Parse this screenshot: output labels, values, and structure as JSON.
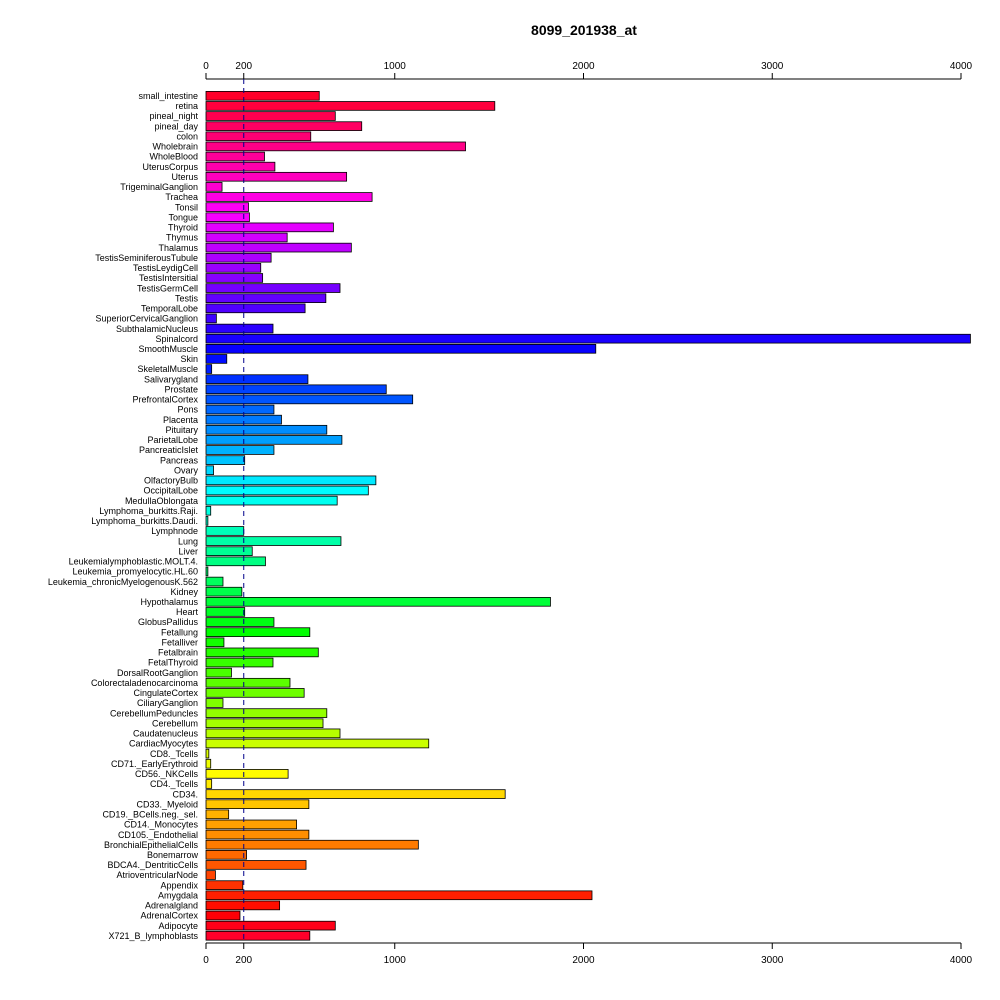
{
  "chart_data": {
    "type": "bar",
    "orientation": "horizontal",
    "title": "8099_201938_at",
    "xlabel": "",
    "ylabel": "",
    "xlim": [
      0,
      4000
    ],
    "x_ticks": [
      0,
      200,
      1000,
      2000,
      3000,
      4000
    ],
    "reference_line": 200,
    "axes": [
      "top",
      "bottom"
    ],
    "grid": false,
    "legend": "none",
    "bar_colors": "rainbow gradient from red (top) through magenta, blue, cyan, green, yellow, orange back to red (bottom)",
    "categories": [
      "small_intestine",
      "retina",
      "pineal_night",
      "pineal_day",
      "colon",
      "Wholebrain",
      "WholeBlood",
      "UterusCorpus",
      "Uterus",
      "TrigeminalGanglion",
      "Trachea",
      "Tonsil",
      "Tongue",
      "Thyroid",
      "Thymus",
      "Thalamus",
      "TestisSeminiferousTubule",
      "TestisLeydigCell",
      "TestisIntersitial",
      "TestisGermCell",
      "Testis",
      "TemporalLobe",
      "SuperiorCervicalGanglion",
      "SubthalamicNucleus",
      "Spinalcord",
      "SmoothMuscle",
      "Skin",
      "SkeletalMuscle",
      "Salivarygland",
      "Prostate",
      "PrefrontalCortex",
      "Pons",
      "Placenta",
      "Pituitary",
      "ParietalLobe",
      "PancreaticIslet",
      "Pancreas",
      "Ovary",
      "OlfactoryBulb",
      "OccipitalLobe",
      "MedullaOblongata",
      "Lymphoma_burkitts.Raji.",
      "Lymphoma_burkitts.Daudi.",
      "Lymphnode",
      "Lung",
      "Liver",
      "Leukemialymphoblastic.MOLT.4.",
      "Leukemia_promyelocytic.HL.60",
      "Leukemia_chronicMyelogenousK.562",
      "Kidney",
      "Hypothalamus",
      "Heart",
      "GlobusPallidus",
      "Fetallung",
      "Fetalliver",
      "Fetalbrain",
      "FetalThyroid",
      "DorsalRootGanglion",
      "Colorectaladenocarcinoma",
      "CingulateCortex",
      "CiliaryGanglion",
      "CerebellumPeduncles",
      "Cerebellum",
      "Caudatenucleus",
      "CardiacMyocytes",
      "CD8._Tcells",
      "CD71._EarlyErythroid",
      "CD56._NKCells",
      "CD4._Tcells",
      "CD34.",
      "CD33._Myeloid",
      "CD19._BCells.neg._sel.",
      "CD14._Monocytes",
      "CD105._Endothelial",
      "BronchialEpithelialCells",
      "Bonemarrow",
      "BDCA4._DentriticCells",
      "AtrioventricularNode",
      "Appendix",
      "Amygdala",
      "Adrenalgland",
      "AdrenalCortex",
      "Adipocyte",
      "X721_B_lymphoblasts"
    ],
    "values": [
      600,
      1530,
      685,
      825,
      555,
      1375,
      310,
      365,
      745,
      85,
      880,
      225,
      230,
      675,
      430,
      770,
      345,
      290,
      300,
      710,
      635,
      525,
      55,
      355,
      4050,
      2065,
      110,
      30,
      540,
      955,
      1095,
      360,
      400,
      640,
      720,
      360,
      205,
      40,
      900,
      860,
      695,
      25,
      10,
      200,
      715,
      245,
      315,
      10,
      90,
      190,
      1825,
      205,
      360,
      550,
      95,
      595,
      355,
      135,
      445,
      520,
      90,
      640,
      620,
      710,
      1180,
      15,
      25,
      435,
      30,
      1585,
      545,
      120,
      480,
      545,
      1125,
      215,
      530,
      50,
      195,
      2045,
      390,
      180,
      685,
      550
    ]
  }
}
